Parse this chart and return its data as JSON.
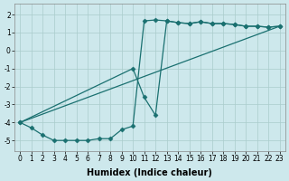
{
  "xlabel": "Humidex (Indice chaleur)",
  "bg_color": "#cde8ec",
  "line_color": "#1a7070",
  "xlim": [
    -0.5,
    23.5
  ],
  "ylim": [
    -5.6,
    2.6
  ],
  "xticks": [
    0,
    1,
    2,
    3,
    4,
    5,
    6,
    7,
    8,
    9,
    10,
    11,
    12,
    13,
    14,
    15,
    16,
    17,
    18,
    19,
    20,
    21,
    22,
    23
  ],
  "yticks": [
    -5,
    -4,
    -3,
    -2,
    -1,
    0,
    1,
    2
  ],
  "curve1_x": [
    0,
    1,
    2,
    3,
    4,
    5,
    6,
    7,
    8,
    9,
    10,
    11,
    12,
    13,
    14,
    15,
    16,
    17,
    18,
    19,
    20,
    21,
    22,
    23
  ],
  "curve1_y": [
    -4.0,
    -4.3,
    -4.7,
    -5.0,
    -5.0,
    -5.0,
    -5.0,
    -4.9,
    -4.9,
    -4.4,
    -4.2,
    1.65,
    1.7,
    1.65,
    1.55,
    1.5,
    1.6,
    1.5,
    1.5,
    1.45,
    1.35,
    1.35,
    1.3,
    1.35
  ],
  "curve2_x": [
    0,
    10,
    11,
    12,
    13,
    14,
    15,
    16,
    17,
    18,
    19,
    20,
    21,
    22,
    23
  ],
  "curve2_y": [
    -4.0,
    -1.0,
    -2.6,
    -3.6,
    1.65,
    1.55,
    1.5,
    1.6,
    1.5,
    1.5,
    1.45,
    1.35,
    1.35,
    1.3,
    1.35
  ],
  "curve3_x": [
    0,
    23
  ],
  "curve3_y": [
    -4.0,
    1.35
  ],
  "grid_color": "#aacccc",
  "marker": "D",
  "markersize": 2.5,
  "linewidth": 0.9,
  "xlabel_fontsize": 7,
  "tick_fontsize": 5.5
}
